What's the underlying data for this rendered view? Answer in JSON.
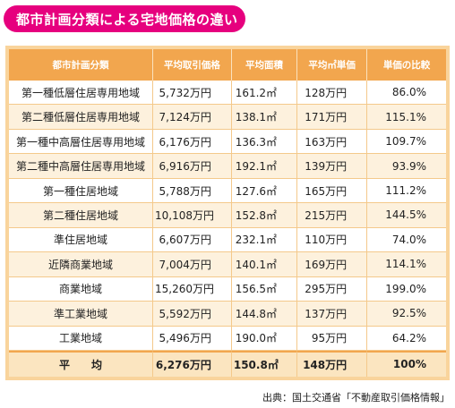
{
  "title": "都市計画分類による宅地価格の違い",
  "table": {
    "headers": [
      "都市計画分類",
      "平均取引価格",
      "平均面積",
      "平均㎡単価",
      "単価の比較"
    ],
    "rows": [
      [
        "第一種低層住居専用地域",
        "5,732万円",
        "161.2㎡",
        "128万円",
        "86.0%"
      ],
      [
        "第二種低層住居専用地域",
        "7,124万円",
        "138.1㎡",
        "171万円",
        "115.1%"
      ],
      [
        "第一種中高層住居専用地域",
        "6,176万円",
        "136.3㎡",
        "163万円",
        "109.7%"
      ],
      [
        "第二種中高層住居専用地域",
        "6,916万円",
        "192.1㎡",
        "139万円",
        "93.9%"
      ],
      [
        "第一種住居地域",
        "5,788万円",
        "127.6㎡",
        "165万円",
        "111.2%"
      ],
      [
        "第二種住居地域",
        "10,108万円",
        "152.8㎡",
        "215万円",
        "144.5%"
      ],
      [
        "準住居地域",
        "6,607万円",
        "232.1㎡",
        "110万円",
        "74.0%"
      ],
      [
        "近隣商業地域",
        "7,004万円",
        "140.1㎡",
        "169万円",
        "114.1%"
      ],
      [
        "商業地域",
        "15,260万円",
        "156.5㎡",
        "295万円",
        "199.0%"
      ],
      [
        "準工業地域",
        "5,592万円",
        "144.8㎡",
        "137万円",
        "92.5%"
      ],
      [
        "工業地域",
        "5,496万円",
        "190.0㎡",
        "95万円",
        "64.2%"
      ]
    ],
    "average": [
      "平　　均",
      "6,276万円",
      "150.8㎡",
      "148万円",
      "100%"
    ]
  },
  "source": "出典：国土交通省「不動産取引価格情報」",
  "colors": {
    "title_bg": "#e6007e",
    "header_bg": "#f2a64e",
    "frame": "#f9d49c"
  }
}
